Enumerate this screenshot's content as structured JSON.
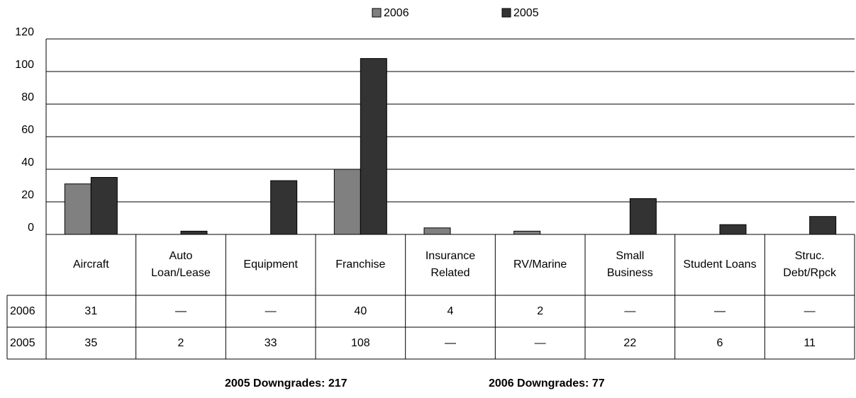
{
  "chart_data": {
    "type": "bar",
    "categories": [
      "Aircraft",
      "Auto\nLoan/Lease",
      "Equipment",
      "Franchise",
      "Insurance\nRelated",
      "RV/Marine",
      "Small\nBusiness",
      "Student Loans",
      "Struc.\nDebt/Rpck"
    ],
    "series": [
      {
        "name": "2006",
        "color": "#808080",
        "values": [
          31,
          null,
          null,
          40,
          4,
          2,
          null,
          null,
          null
        ],
        "value_labels": [
          "31",
          "—",
          "—",
          "40",
          "4",
          "2",
          "—",
          "—",
          "—"
        ]
      },
      {
        "name": "2005",
        "color": "#333333",
        "values": [
          35,
          2,
          33,
          108,
          null,
          null,
          22,
          6,
          11
        ],
        "value_labels": [
          "35",
          "2",
          "33",
          "108",
          "—",
          "—",
          "22",
          "6",
          "11"
        ]
      }
    ],
    "ylim": [
      0,
      120
    ],
    "yticks": [
      0,
      20,
      40,
      60,
      80,
      100,
      120
    ],
    "grid": true,
    "legend": "top",
    "annotations": [
      "2005 Downgrades: 217",
      "2006 Downgrades: 77"
    ]
  }
}
